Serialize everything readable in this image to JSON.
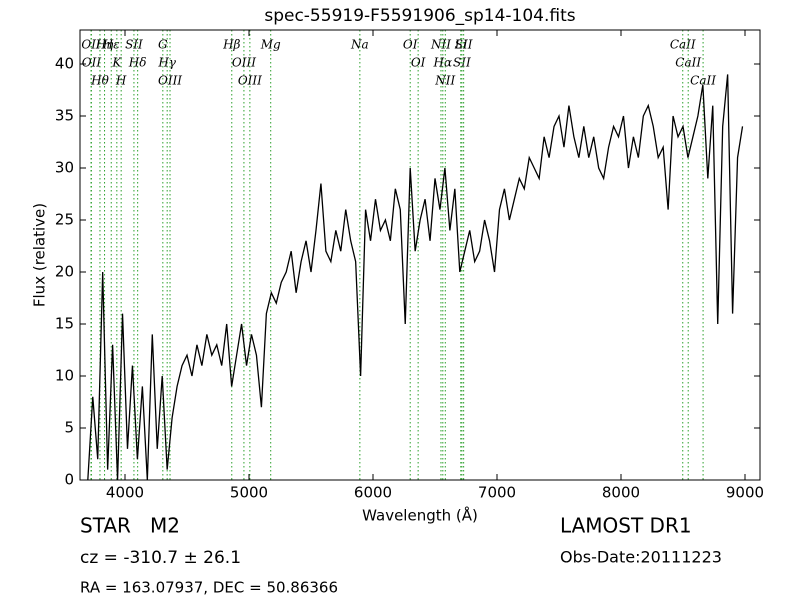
{
  "chart_data": {
    "type": "line",
    "title": "spec-55919-F5591906_sp14-104.fits",
    "x_label": "Wavelength (Å)",
    "y_label": "Flux (relative)",
    "xlim": [
      3637,
      9121
    ],
    "ylim": [
      0,
      43.27
    ],
    "xticks": [
      4000,
      5000,
      6000,
      7000,
      8000,
      9000
    ],
    "yticks": [
      0,
      5,
      10,
      15,
      20,
      25,
      30,
      35,
      40
    ],
    "color": "#000000",
    "line_color": "#2ca02c",
    "x": [
      3700,
      3740,
      3780,
      3820,
      3860,
      3900,
      3940,
      3980,
      4020,
      4060,
      4100,
      4140,
      4180,
      4220,
      4260,
      4300,
      4340,
      4380,
      4420,
      4460,
      4500,
      4540,
      4580,
      4620,
      4660,
      4700,
      4740,
      4780,
      4820,
      4860,
      4900,
      4940,
      4980,
      5020,
      5060,
      5100,
      5140,
      5180,
      5220,
      5260,
      5300,
      5340,
      5380,
      5420,
      5460,
      5500,
      5540,
      5580,
      5620,
      5660,
      5700,
      5740,
      5780,
      5820,
      5860,
      5900,
      5940,
      5980,
      6020,
      6060,
      6100,
      6140,
      6180,
      6220,
      6260,
      6300,
      6340,
      6380,
      6420,
      6460,
      6500,
      6540,
      6580,
      6620,
      6660,
      6700,
      6740,
      6780,
      6820,
      6860,
      6900,
      6940,
      6980,
      7020,
      7060,
      7100,
      7140,
      7180,
      7220,
      7260,
      7300,
      7340,
      7380,
      7420,
      7460,
      7500,
      7540,
      7580,
      7620,
      7660,
      7700,
      7740,
      7780,
      7820,
      7860,
      7900,
      7940,
      7980,
      8020,
      8060,
      8100,
      8140,
      8180,
      8220,
      8260,
      8300,
      8340,
      8380,
      8420,
      8460,
      8500,
      8540,
      8580,
      8620,
      8660,
      8700,
      8740,
      8780,
      8820,
      8860,
      8900,
      8940,
      8980
    ],
    "values": [
      0,
      8,
      2,
      20,
      1,
      13,
      0,
      16,
      3,
      11,
      2,
      9,
      0,
      14,
      3,
      10,
      1,
      6,
      9,
      11,
      12,
      10,
      13,
      11,
      14,
      12,
      13,
      11,
      15,
      9,
      12,
      15,
      11,
      14,
      12,
      7,
      16,
      18,
      17,
      19,
      20,
      22,
      18,
      21,
      23,
      20,
      24,
      28.5,
      22,
      21,
      24,
      22,
      26,
      23,
      21,
      10,
      26,
      23,
      27,
      24,
      25,
      23,
      28,
      26,
      15,
      30,
      22,
      25,
      27,
      23,
      29,
      26,
      30,
      24,
      28,
      20,
      22,
      24,
      21,
      22,
      25,
      23,
      20,
      26,
      28,
      25,
      27,
      29,
      28,
      31,
      30,
      29,
      33,
      31,
      34,
      35,
      32,
      36,
      33,
      31,
      34,
      31,
      33,
      30,
      29,
      32,
      34,
      33,
      35,
      30,
      33,
      31,
      35,
      36,
      34,
      31,
      32,
      26,
      35,
      33,
      34,
      31,
      33,
      35,
      38,
      29,
      36,
      15,
      34,
      39,
      16,
      31,
      34
    ],
    "spectral_lines": [
      {
        "label": "OII",
        "x": 3726
      },
      {
        "label": "OII",
        "x": 3729
      },
      {
        "label": "Hθ",
        "x": 3798
      },
      {
        "label": "Hη",
        "x": 3835
      },
      {
        "label": "Hε",
        "x": 3889
      },
      {
        "label": "K",
        "x": 3934
      },
      {
        "label": "H",
        "x": 3969
      },
      {
        "label": "SII",
        "x": 4072
      },
      {
        "label": "Hδ",
        "x": 4102
      },
      {
        "label": "G",
        "x": 4305
      },
      {
        "label": "Hγ",
        "x": 4340
      },
      {
        "label": "OIII",
        "x": 4363
      },
      {
        "label": "Hβ",
        "x": 4861
      },
      {
        "label": "OIII",
        "x": 4959
      },
      {
        "label": "OIII",
        "x": 5007
      },
      {
        "label": "Mg",
        "x": 5175
      },
      {
        "label": "Na",
        "x": 5894
      },
      {
        "label": "OI",
        "x": 6300
      },
      {
        "label": "OI",
        "x": 6364
      },
      {
        "label": "NII",
        "x": 6548
      },
      {
        "label": "Hα",
        "x": 6563
      },
      {
        "label": "NII",
        "x": 6583
      },
      {
        "label": "Li",
        "x": 6708
      },
      {
        "label": "SII",
        "x": 6717
      },
      {
        "label": "SII",
        "x": 6731
      },
      {
        "label": "CaII",
        "x": 8498
      },
      {
        "label": "CaII",
        "x": 8542
      },
      {
        "label": "CaII",
        "x": 8662
      }
    ],
    "info": {
      "object": "STAR   M2",
      "survey": "LAMOST DR1",
      "cz": "cz = -310.7 ± 26.1",
      "obs_date": "Obs-Date:20111223",
      "coords": "RA = 163.07937, DEC = 50.86366"
    }
  }
}
